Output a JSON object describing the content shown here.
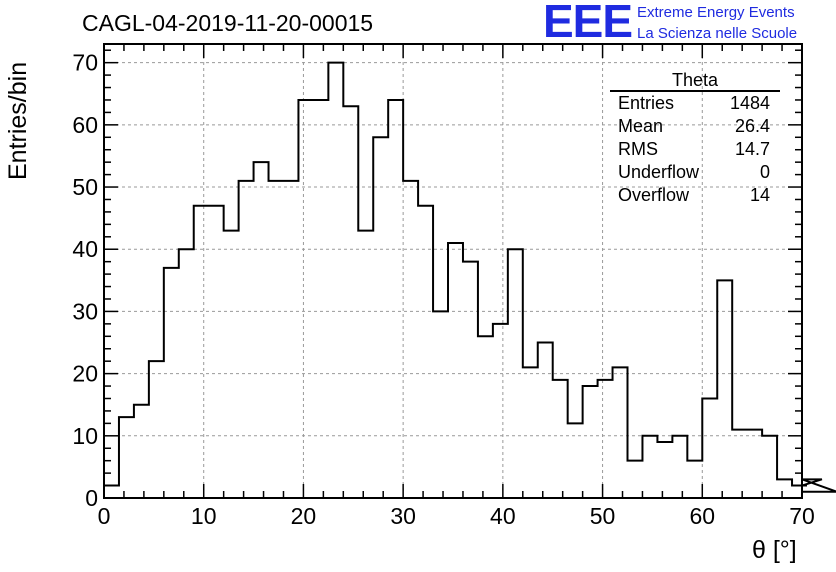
{
  "title": "CAGL-04-2019-11-20-00015",
  "logo": {
    "mark": "EEE",
    "line1": "Extreme Energy Events",
    "line2": "La Scienza nelle Scuole"
  },
  "stats": {
    "title": "Theta",
    "rows": [
      {
        "label": "Entries",
        "value": "1484"
      },
      {
        "label": "Mean",
        "value": "26.4"
      },
      {
        "label": "RMS",
        "value": "14.7"
      },
      {
        "label": "Underflow",
        "value": "0"
      },
      {
        "label": "Overflow",
        "value": "14"
      }
    ]
  },
  "colors": {
    "logo": "#1f2be0",
    "line": "#000000",
    "grid": "#999999"
  },
  "chart_data": {
    "type": "bar",
    "style": "step-histogram",
    "title": "CAGL-04-2019-11-20-00015",
    "xlabel": "θ [°]",
    "ylabel": "Entries/bin",
    "xlim": [
      0,
      70
    ],
    "ylim": [
      0,
      73
    ],
    "bin_width": 1.5,
    "x_ticks": [
      0,
      10,
      20,
      30,
      40,
      50,
      60,
      70
    ],
    "y_ticks": [
      0,
      10,
      20,
      30,
      40,
      50,
      60,
      70
    ],
    "grid": true,
    "values": [
      2,
      13,
      15,
      22,
      37,
      40,
      47,
      47,
      43,
      51,
      54,
      51,
      51,
      64,
      64,
      70,
      63,
      43,
      58,
      64,
      51,
      47,
      30,
      41,
      38,
      26,
      28,
      40,
      21,
      25,
      19,
      12,
      18,
      19,
      21,
      6,
      10,
      9,
      10,
      6,
      16,
      35,
      11,
      11,
      10,
      3,
      2,
      2,
      3,
      1
    ]
  }
}
